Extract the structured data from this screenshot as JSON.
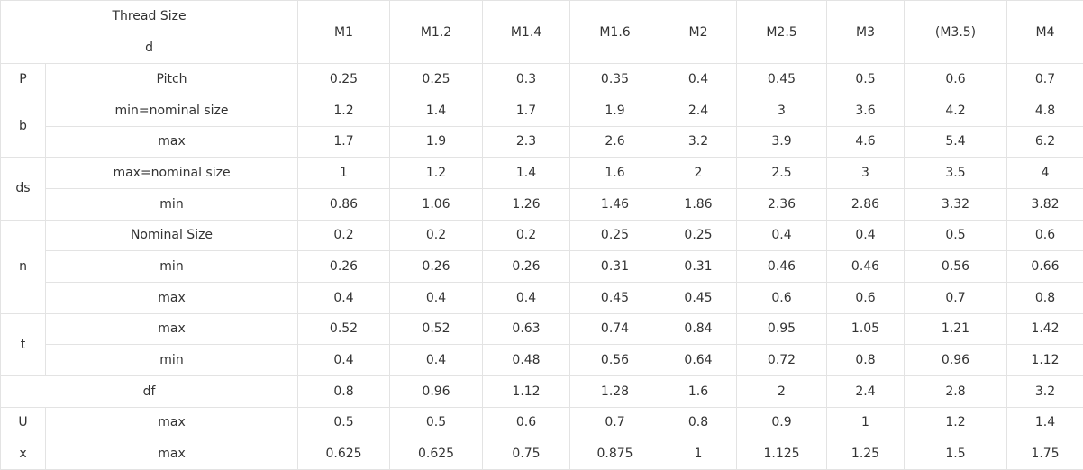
{
  "table": {
    "corner": [
      "Thread Size",
      "d"
    ],
    "sizes": [
      "M1",
      "M1.2",
      "M1.4",
      "M1.6",
      "M2",
      "M2.5",
      "M3",
      "(M3.5)",
      "M4"
    ],
    "groups": [
      {
        "symbol": "P",
        "rows": [
          {
            "label": "Pitch",
            "values": [
              0.25,
              0.25,
              0.3,
              0.35,
              0.4,
              0.45,
              0.5,
              0.6,
              0.7
            ]
          }
        ]
      },
      {
        "symbol": "b",
        "rows": [
          {
            "label": "min=nominal size",
            "values": [
              1.2,
              1.4,
              1.7,
              1.9,
              2.4,
              3,
              3.6,
              4.2,
              4.8
            ]
          },
          {
            "label": "max",
            "values": [
              1.7,
              1.9,
              2.3,
              2.6,
              3.2,
              3.9,
              4.6,
              5.4,
              6.2
            ]
          }
        ]
      },
      {
        "symbol": "ds",
        "rows": [
          {
            "label": "max=nominal size",
            "values": [
              1,
              1.2,
              1.4,
              1.6,
              2,
              2.5,
              3,
              3.5,
              4
            ]
          },
          {
            "label": "min",
            "values": [
              0.86,
              1.06,
              1.26,
              1.46,
              1.86,
              2.36,
              2.86,
              3.32,
              3.82
            ]
          }
        ]
      },
      {
        "symbol": "n",
        "rows": [
          {
            "label": "Nominal Size",
            "values": [
              0.2,
              0.2,
              0.2,
              0.25,
              0.25,
              0.4,
              0.4,
              0.5,
              0.6
            ]
          },
          {
            "label": "min",
            "values": [
              0.26,
              0.26,
              0.26,
              0.31,
              0.31,
              0.46,
              0.46,
              0.56,
              0.66
            ]
          },
          {
            "label": "max",
            "values": [
              0.4,
              0.4,
              0.4,
              0.45,
              0.45,
              0.6,
              0.6,
              0.7,
              0.8
            ]
          }
        ]
      },
      {
        "symbol": "t",
        "rows": [
          {
            "label": "max",
            "values": [
              0.52,
              0.52,
              0.63,
              0.74,
              0.84,
              0.95,
              1.05,
              1.21,
              1.42
            ]
          },
          {
            "label": "min",
            "values": [
              0.4,
              0.4,
              0.48,
              0.56,
              0.64,
              0.72,
              0.8,
              0.96,
              1.12
            ]
          }
        ]
      },
      {
        "symbol": "df",
        "rows": [
          {
            "values": [
              0.8,
              0.96,
              1.12,
              1.28,
              1.6,
              2,
              2.4,
              2.8,
              3.2
            ]
          }
        ]
      },
      {
        "symbol": "U",
        "rows": [
          {
            "label": "max",
            "values": [
              0.5,
              0.5,
              0.6,
              0.7,
              0.8,
              0.9,
              1,
              1.2,
              1.4
            ]
          }
        ]
      },
      {
        "symbol": "x",
        "rows": [
          {
            "label": "max",
            "values": [
              0.625,
              0.625,
              0.75,
              0.875,
              1,
              1.125,
              1.25,
              1.5,
              1.75
            ]
          }
        ]
      }
    ]
  }
}
